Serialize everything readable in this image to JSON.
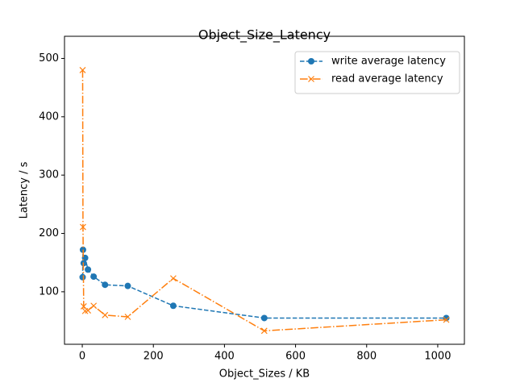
{
  "chart_data": {
    "type": "line",
    "title": "Object_Size_Latency",
    "x_label": "Object_Sizes / KB",
    "y_label": "Latency / s",
    "x": [
      1,
      2,
      4,
      8,
      16,
      32,
      64,
      128,
      256,
      512,
      1024
    ],
    "series": [
      {
        "name": "write average latency",
        "color": "#1f77b4",
        "linestyle": "dashed",
        "marker": "o",
        "values": [
          125,
          172,
          149,
          158,
          138,
          126,
          112,
          110,
          76,
          55,
          55
        ]
      },
      {
        "name": "read average latency",
        "color": "#ff7f0e",
        "linestyle": "dashdot",
        "marker": "x",
        "values": [
          480,
          211,
          75,
          67,
          68,
          76,
          60,
          57,
          123,
          33,
          52
        ]
      }
    ],
    "xlim": [
      -50,
      1075
    ],
    "xticks": [
      0,
      200,
      400,
      600,
      800,
      1000
    ],
    "ylim": [
      10,
      520
    ],
    "yticks": [
      100,
      200,
      300,
      400,
      500
    ],
    "grid": false,
    "legend": "upper right"
  }
}
